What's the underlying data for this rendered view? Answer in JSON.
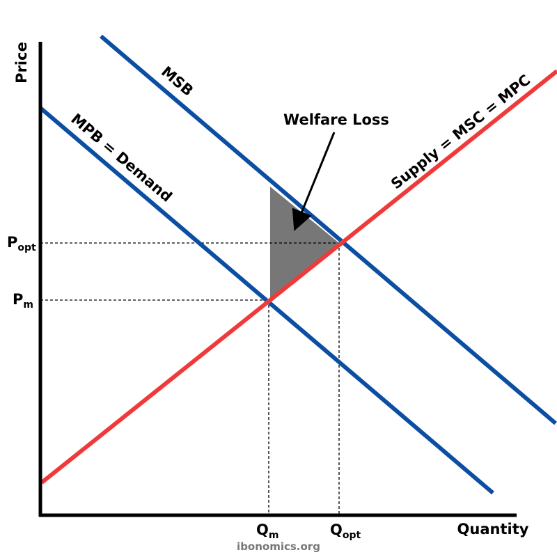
{
  "axes": {
    "y_label": "Price",
    "x_label": "Quantity"
  },
  "curves": {
    "msb": "MSB",
    "demand": "MPB = Demand",
    "supply": "Supply = MSC = MPC"
  },
  "annotation": "Welfare Loss",
  "points": {
    "p_opt": {
      "main": "P",
      "sub": "opt"
    },
    "p_m": {
      "main": "P",
      "sub": "m"
    },
    "q_m": {
      "main": "Q",
      "sub": "m"
    },
    "q_opt": {
      "main": "Q",
      "sub": "opt"
    }
  },
  "watermark": "ibonomics.org"
}
